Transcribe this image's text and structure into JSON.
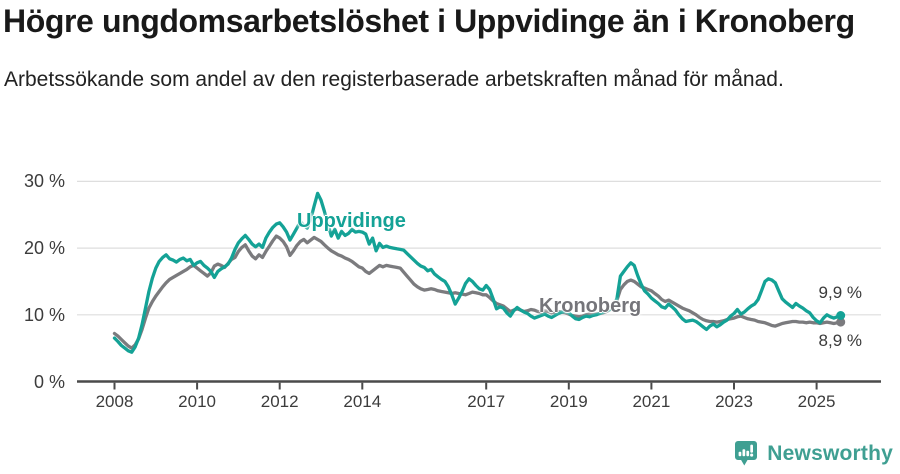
{
  "header": {
    "title": "Högre ungdomsarbetslöshet i Uppvidinge än i Kronoberg",
    "subtitle": "Arbetssökande som andel av den registerbaserade arbetskraften månad för månad."
  },
  "chart_data": {
    "type": "line",
    "unit": "%",
    "frequency": "monthly",
    "x_start": "2008-01",
    "x_end": "2025-08",
    "ylim": [
      0,
      30
    ],
    "grid": true,
    "legend_position": "inline-labels",
    "xlabel": "",
    "ylabel": "",
    "y_ticks": [
      {
        "value": 0,
        "label": "0 %"
      },
      {
        "value": 10,
        "label": "10 %"
      },
      {
        "value": 20,
        "label": "20 %"
      },
      {
        "value": 30,
        "label": "30 %"
      }
    ],
    "x_ticks": [
      {
        "year": 2008,
        "label": "2008"
      },
      {
        "year": 2010,
        "label": "2010"
      },
      {
        "year": 2012,
        "label": "2012"
      },
      {
        "year": 2014,
        "label": "2014"
      },
      {
        "year": 2017,
        "label": "2017"
      },
      {
        "year": 2019,
        "label": "2019"
      },
      {
        "year": 2021,
        "label": "2021"
      },
      {
        "year": 2023,
        "label": "2023"
      },
      {
        "year": 2025,
        "label": "2025"
      }
    ],
    "series": [
      {
        "name": "Uppvidinge",
        "color": "#14A296",
        "end_label": "9,9 %",
        "end_value": 9.9,
        "values": [
          6.5,
          6.0,
          5.4,
          5.0,
          4.6,
          4.4,
          5.2,
          6.5,
          8.5,
          11.0,
          13.5,
          15.5,
          17.0,
          18.0,
          18.6,
          19.0,
          18.4,
          18.2,
          17.9,
          18.3,
          18.5,
          18.1,
          18.3,
          17.4,
          17.8,
          18.0,
          17.4,
          17.0,
          16.5,
          15.6,
          16.5,
          16.9,
          17.2,
          17.6,
          18.5,
          19.8,
          20.8,
          21.4,
          21.9,
          21.3,
          20.6,
          20.2,
          20.6,
          20.1,
          21.5,
          22.4,
          23.1,
          23.6,
          23.8,
          23.2,
          22.4,
          21.2,
          22.1,
          23.0,
          24.0,
          23.4,
          23.0,
          24.3,
          26.3,
          28.2,
          27.2,
          25.5,
          23.6,
          21.8,
          22.8,
          21.5,
          22.5,
          21.9,
          22.2,
          22.8,
          22.4,
          22.5,
          22.4,
          22.1,
          20.6,
          21.5,
          19.6,
          20.7,
          20.1,
          20.3,
          20.1,
          20.0,
          19.9,
          19.8,
          19.7,
          19.2,
          18.7,
          18.2,
          17.7,
          17.3,
          17.1,
          16.6,
          16.8,
          16.1,
          15.7,
          15.3,
          15.0,
          14.2,
          13.0,
          11.6,
          12.5,
          13.5,
          14.7,
          15.4,
          15.0,
          14.4,
          13.9,
          13.7,
          14.4,
          13.8,
          12.4,
          10.9,
          11.2,
          11.0,
          10.3,
          9.8,
          10.6,
          11.1,
          10.7,
          10.4,
          10.2,
          9.8,
          9.5,
          9.7,
          9.9,
          10.1,
          9.8,
          9.6,
          9.9,
          10.2,
          10.4,
          10.5,
          10.3,
          9.8,
          9.4,
          9.3,
          9.6,
          9.8,
          9.7,
          9.9,
          10.0,
          10.2,
          10.4,
          10.6,
          10.8,
          11.0,
          12.5,
          15.8,
          16.5,
          17.2,
          17.8,
          17.4,
          15.9,
          14.6,
          13.6,
          13.1,
          12.5,
          12.1,
          11.7,
          11.2,
          11.0,
          11.6,
          11.2,
          10.7,
          10.0,
          9.4,
          9.0,
          9.1,
          9.2,
          9.0,
          8.6,
          8.2,
          7.8,
          8.3,
          8.6,
          8.2,
          8.5,
          8.9,
          9.2,
          9.8,
          10.2,
          10.8,
          10.1,
          10.4,
          10.9,
          11.3,
          11.6,
          12.3,
          13.6,
          15.0,
          15.4,
          15.2,
          14.8,
          13.6,
          12.4,
          11.9,
          11.5,
          11.1,
          11.7,
          11.3,
          11.0,
          10.6,
          10.3,
          9.6,
          9.1,
          8.8,
          9.5,
          10.0,
          9.7,
          9.5,
          9.7,
          9.9
        ]
      },
      {
        "name": "Kronoberg",
        "color": "#7B7B7E",
        "end_label": "8,9 %",
        "end_value": 8.9,
        "values": [
          7.2,
          6.8,
          6.3,
          5.8,
          5.3,
          5.0,
          5.5,
          6.4,
          7.8,
          9.5,
          11.0,
          12.0,
          12.8,
          13.5,
          14.2,
          14.8,
          15.3,
          15.6,
          15.9,
          16.2,
          16.5,
          16.8,
          17.2,
          17.4,
          17.0,
          16.6,
          16.2,
          15.8,
          16.3,
          17.3,
          17.6,
          17.4,
          17.1,
          17.7,
          18.3,
          18.6,
          19.5,
          20.1,
          20.5,
          19.6,
          18.8,
          18.4,
          19.0,
          18.6,
          19.5,
          20.3,
          21.1,
          21.8,
          21.5,
          21.0,
          20.2,
          18.9,
          19.6,
          20.4,
          21.0,
          21.3,
          20.8,
          21.2,
          21.6,
          21.3,
          21.0,
          20.5,
          20.0,
          19.6,
          19.3,
          19.0,
          18.8,
          18.5,
          18.3,
          18.0,
          17.6,
          17.2,
          17.0,
          16.5,
          16.2,
          16.6,
          17.0,
          17.4,
          17.2,
          17.4,
          17.3,
          17.2,
          17.1,
          17.0,
          16.4,
          15.8,
          15.2,
          14.6,
          14.2,
          13.9,
          13.7,
          13.8,
          13.9,
          13.8,
          13.6,
          13.5,
          13.4,
          13.3,
          13.2,
          13.3,
          13.2,
          13.1,
          13.0,
          13.2,
          13.4,
          13.3,
          13.2,
          13.0,
          13.0,
          12.6,
          12.1,
          11.7,
          11.5,
          11.3,
          10.9,
          10.5,
          10.7,
          10.9,
          10.7,
          10.5,
          10.6,
          10.8,
          10.7,
          10.5,
          10.4,
          10.6,
          10.5,
          10.3,
          10.4,
          10.5,
          10.4,
          10.3,
          10.1,
          9.9,
          9.8,
          9.7,
          9.8,
          10.0,
          10.1,
          10.0,
          10.1,
          10.2,
          10.3,
          10.5,
          10.8,
          11.0,
          12.2,
          13.8,
          14.5,
          15.0,
          15.2,
          15.0,
          14.6,
          14.2,
          14.0,
          13.8,
          13.6,
          13.2,
          12.8,
          12.3,
          12.0,
          12.2,
          11.9,
          11.6,
          11.3,
          11.0,
          10.8,
          10.6,
          10.3,
          10.0,
          9.6,
          9.3,
          9.1,
          9.0,
          9.0,
          8.9,
          9.0,
          9.1,
          9.3,
          9.4,
          9.5,
          9.7,
          9.8,
          9.6,
          9.4,
          9.3,
          9.2,
          9.0,
          8.9,
          8.8,
          8.6,
          8.4,
          8.3,
          8.5,
          8.7,
          8.8,
          8.9,
          9.0,
          9.0,
          8.9,
          8.9,
          8.8,
          8.9,
          8.8,
          8.8,
          8.7,
          8.8,
          8.9,
          8.8,
          8.7,
          8.8,
          8.9
        ]
      }
    ]
  },
  "footer": {
    "brand": "Newsworthy"
  },
  "colors": {
    "accent_teal": "#14A296",
    "series_gray": "#7B7B7E",
    "axis": "#4A4A4A",
    "gridline": "#DEDEDE",
    "logo_teal": "#3F9F92"
  }
}
